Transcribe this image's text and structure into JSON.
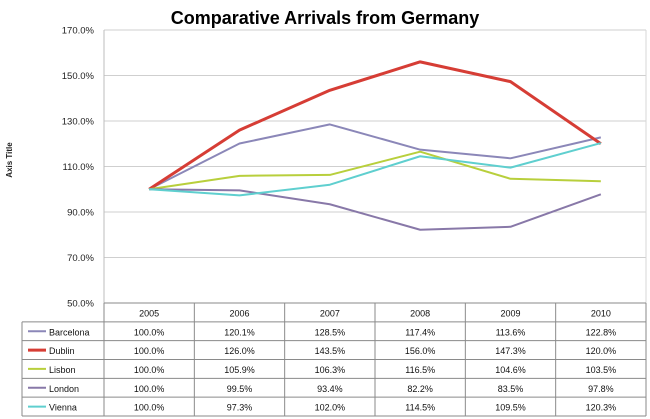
{
  "chart_data": {
    "type": "line",
    "title": "Comparative Arrivals from Germany",
    "ylabel": "Axis Title",
    "xlabel": "",
    "categories": [
      "2005",
      "2006",
      "2007",
      "2008",
      "2009",
      "2010"
    ],
    "ylim": [
      50,
      170
    ],
    "yticks": [
      "50.0%",
      "70.0%",
      "90.0%",
      "110.0%",
      "130.0%",
      "150.0%",
      "170.0%"
    ],
    "ytick_values": [
      50,
      70,
      90,
      110,
      130,
      150,
      170
    ],
    "grid": true,
    "legend": "data-table",
    "series": [
      {
        "name": "Barcelona",
        "color": "#8b87b8",
        "values": [
          100.0,
          120.1,
          128.5,
          117.4,
          113.6,
          122.8
        ],
        "labels": [
          "100.0%",
          "120.1%",
          "128.5%",
          "117.4%",
          "113.6%",
          "122.8%"
        ]
      },
      {
        "name": "Dublin",
        "color": "#d63d35",
        "values": [
          100.0,
          126.0,
          143.5,
          156.0,
          147.3,
          120.0
        ],
        "labels": [
          "100.0%",
          "126.0%",
          "143.5%",
          "156.0%",
          "147.3%",
          "120.0%"
        ]
      },
      {
        "name": "Lisbon",
        "color": "#b8cf3c",
        "values": [
          100.0,
          105.9,
          106.3,
          116.5,
          104.6,
          103.5
        ],
        "labels": [
          "100.0%",
          "105.9%",
          "106.3%",
          "116.5%",
          "104.6%",
          "103.5%"
        ]
      },
      {
        "name": "London",
        "color": "#8878a8",
        "values": [
          100.0,
          99.5,
          93.4,
          82.2,
          83.5,
          97.8
        ],
        "labels": [
          "100.0%",
          "99.5%",
          "93.4%",
          "82.2%",
          "83.5%",
          "97.8%"
        ]
      },
      {
        "name": "Vienna",
        "color": "#5fcfcf",
        "values": [
          100.0,
          97.3,
          102.0,
          114.5,
          109.5,
          120.3
        ],
        "labels": [
          "100.0%",
          "97.3%",
          "102.0%",
          "114.5%",
          "109.5%",
          "120.3%"
        ]
      }
    ]
  }
}
